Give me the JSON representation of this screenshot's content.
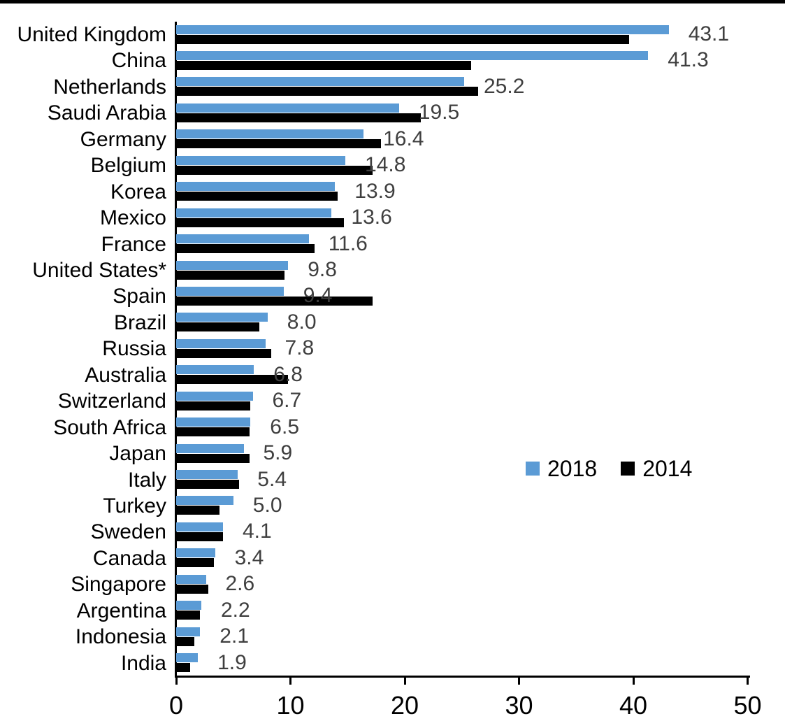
{
  "chart_data": {
    "type": "bar",
    "orientation": "horizontal",
    "title": "",
    "xlabel": "",
    "ylabel": "",
    "categories": [
      "United Kingdom",
      "China",
      "Netherlands",
      "Saudi Arabia",
      "Germany",
      "Belgium",
      "Korea",
      "Mexico",
      "France",
      "United States*",
      "Spain",
      "Brazil",
      "Russia",
      "Australia",
      "Switzerland",
      "South Africa",
      "Japan",
      "Italy",
      "Turkey",
      "Sweden",
      "Canada",
      "Singapore",
      "Argentina",
      "Indonesia",
      "India"
    ],
    "series": [
      {
        "name": "2018",
        "color": "#5B9BD5",
        "values": [
          43.1,
          41.3,
          25.2,
          19.5,
          16.4,
          14.8,
          13.9,
          13.6,
          11.6,
          9.8,
          9.4,
          8.0,
          7.8,
          6.8,
          6.7,
          6.5,
          5.9,
          5.4,
          5.0,
          4.1,
          3.4,
          2.6,
          2.2,
          2.1,
          1.9
        ]
      },
      {
        "name": "2014",
        "color": "#000000",
        "values": [
          39.6,
          25.8,
          26.4,
          21.4,
          17.9,
          17.2,
          14.1,
          14.7,
          12.1,
          9.5,
          17.2,
          7.3,
          8.3,
          9.8,
          6.5,
          6.4,
          6.4,
          5.5,
          3.8,
          4.1,
          3.3,
          2.8,
          2.1,
          1.6,
          1.2
        ]
      }
    ],
    "data_labels": [
      "43.1",
      "41.3",
      "25.2",
      "19.5",
      "16.4",
      "14.8",
      "13.9",
      "13.6",
      "11.6",
      "9.8",
      "9.4",
      "8.0",
      "7.8",
      "6.8",
      "6.7",
      "6.5",
      "5.9",
      "5.4",
      "5.0",
      "4.1",
      "3.4",
      "2.6",
      "2.2",
      "2.1",
      "1.9"
    ],
    "data_labels_series": "2018",
    "xlim": [
      0,
      50
    ],
    "x_ticks": [
      0,
      10,
      20,
      30,
      40,
      50
    ],
    "grid": false,
    "legend_position": "center-right",
    "value_label_color": "#3F3F3F",
    "axis_color": "#000000",
    "background_color": "#FFFFFF"
  }
}
